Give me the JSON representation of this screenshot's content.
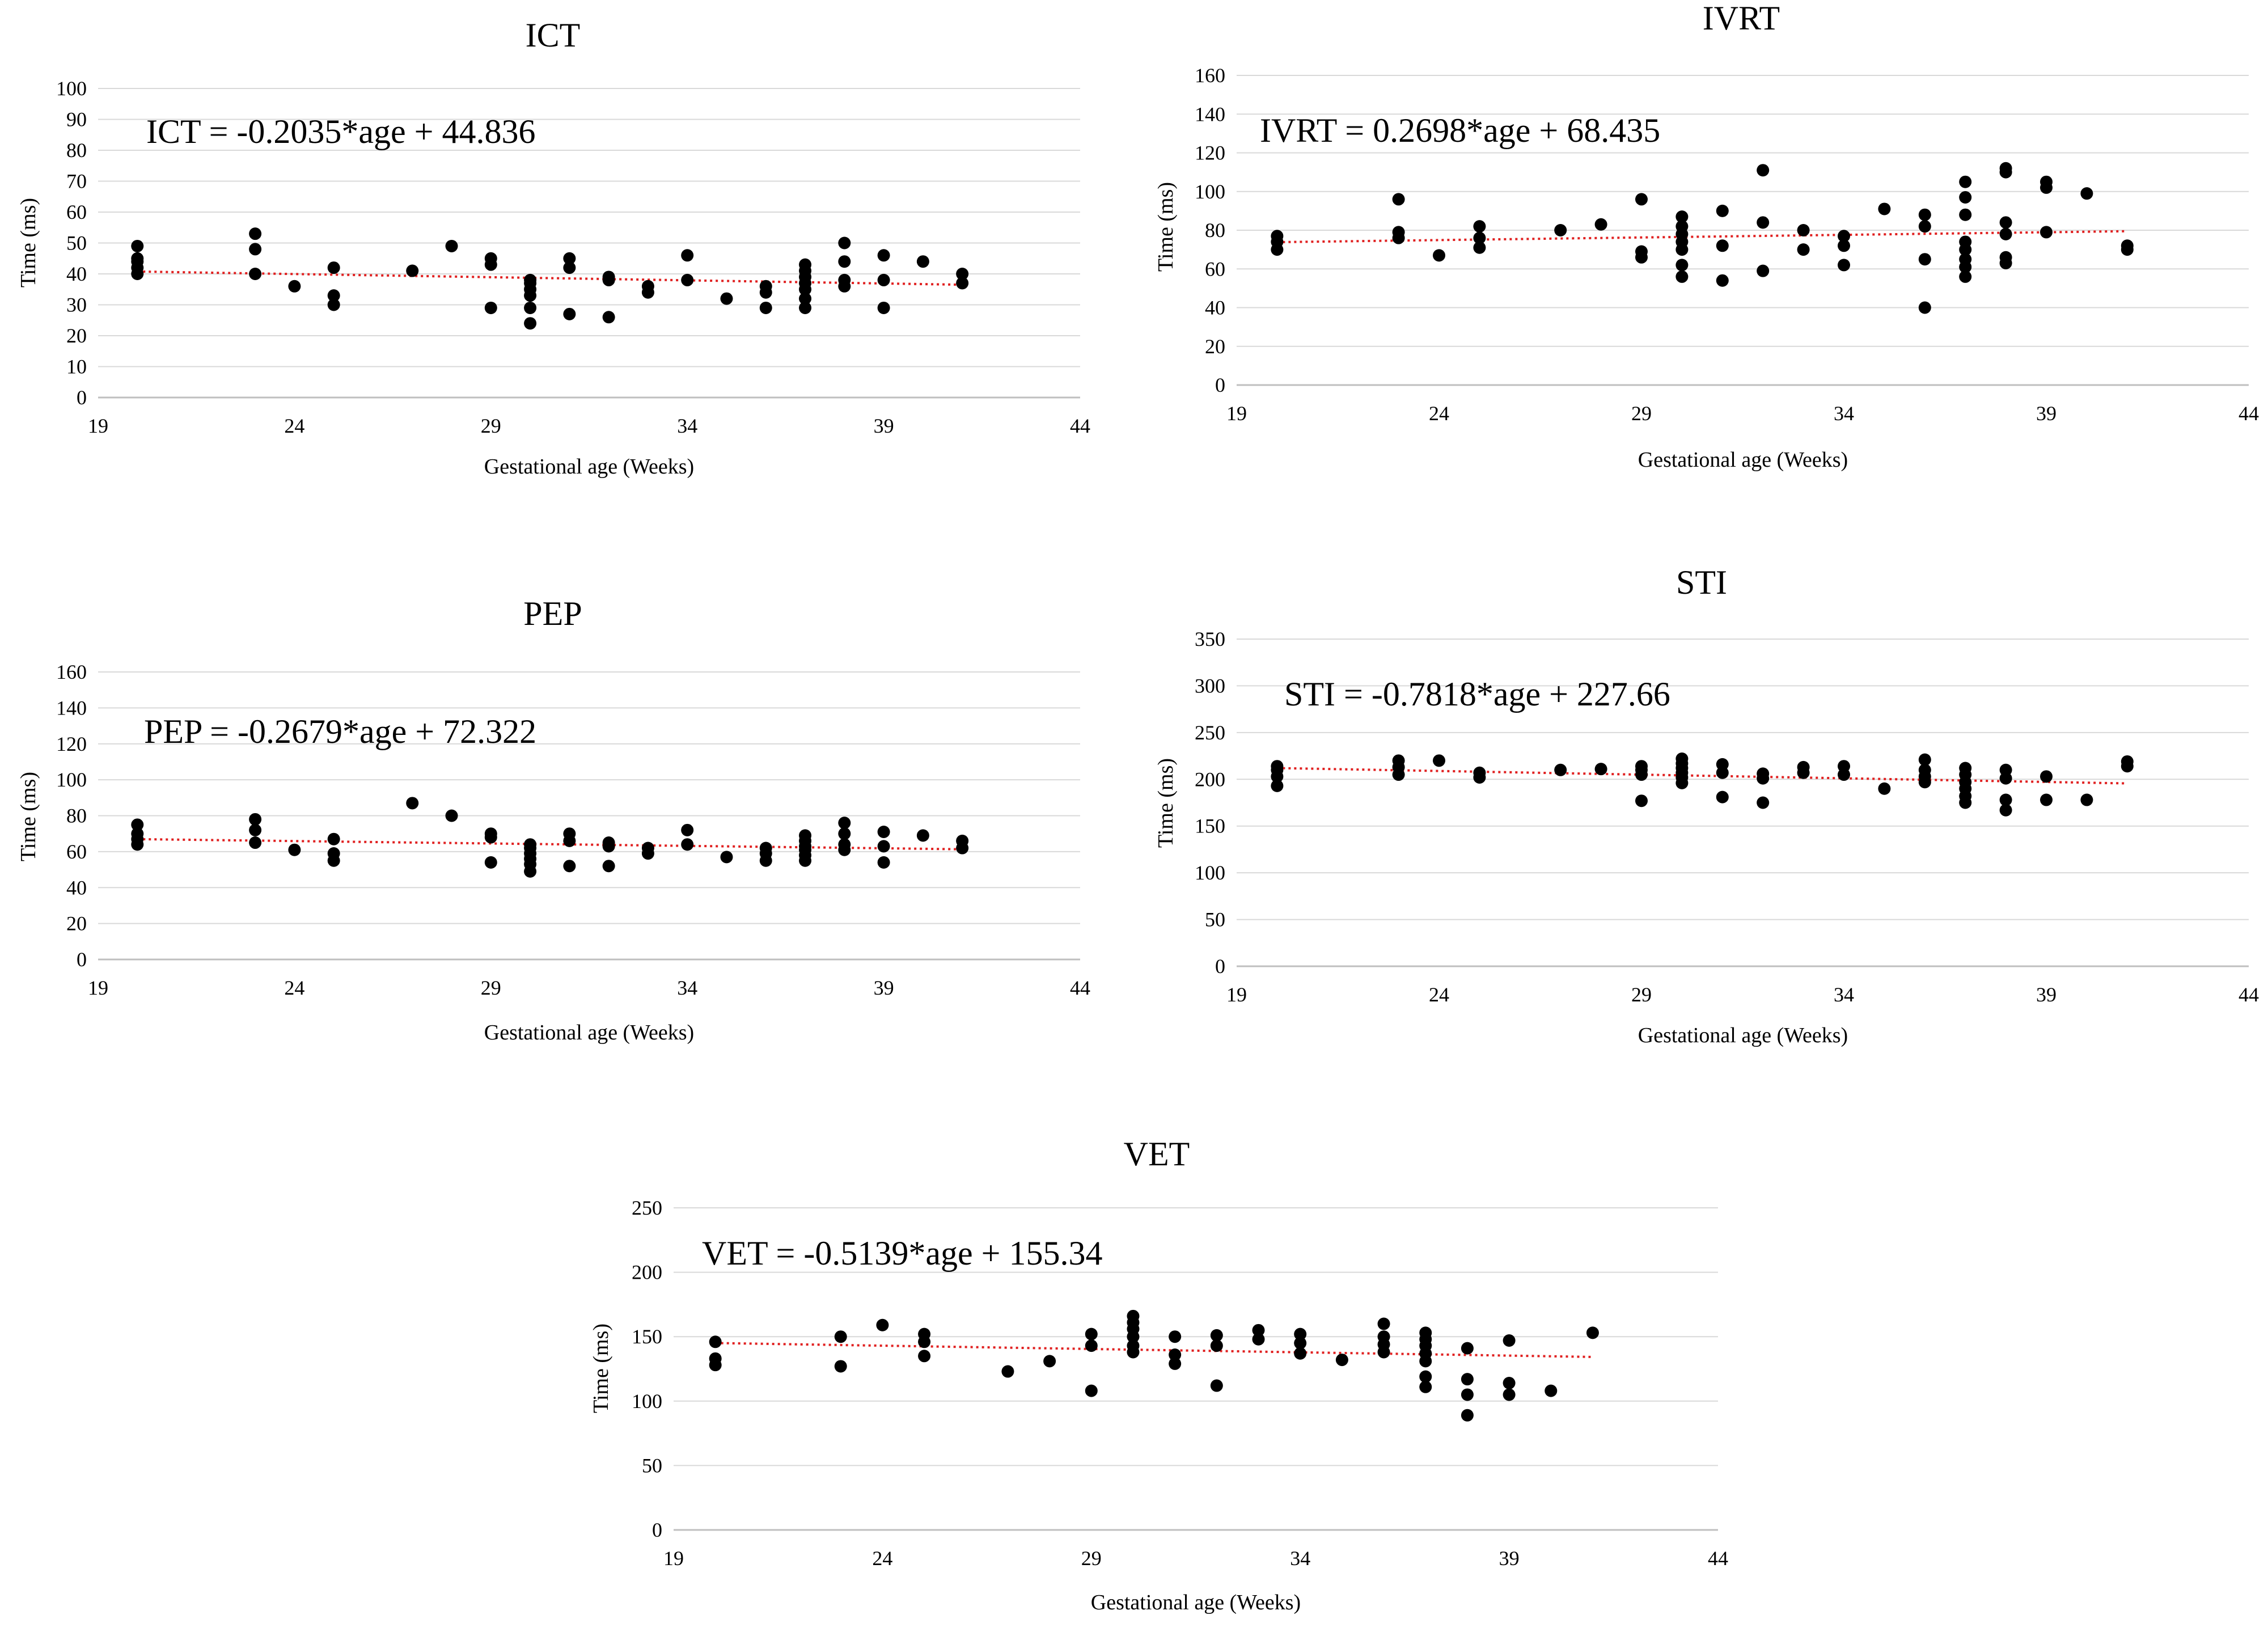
{
  "chart_data": [
    {
      "id": "ict",
      "type": "scatter",
      "title": "ICT",
      "xlabel": "Gestational age (Weeks)",
      "ylabel": "Time (ms)",
      "xlim": [
        19,
        44
      ],
      "ylim": [
        0,
        100
      ],
      "xticks": [
        19,
        24,
        29,
        34,
        39,
        44
      ],
      "yticks": [
        0,
        10,
        20,
        30,
        40,
        50,
        60,
        70,
        80,
        90,
        100
      ],
      "grid": true,
      "equation": "ICT = -0.2035*age + 44.836",
      "trendline": {
        "slope": -0.2035,
        "intercept": 44.836,
        "x": [
          20,
          41
        ],
        "color": "#e02020"
      },
      "marker_color": "#000000",
      "points": [
        [
          20,
          40
        ],
        [
          20,
          42
        ],
        [
          20,
          44
        ],
        [
          20,
          45
        ],
        [
          20,
          49
        ],
        [
          23,
          40
        ],
        [
          23,
          48
        ],
        [
          23,
          53
        ],
        [
          24,
          36
        ],
        [
          25,
          30
        ],
        [
          25,
          33
        ],
        [
          25,
          42
        ],
        [
          27,
          41
        ],
        [
          28,
          49
        ],
        [
          29,
          29
        ],
        [
          29,
          43
        ],
        [
          29,
          45
        ],
        [
          30,
          24
        ],
        [
          30,
          29
        ],
        [
          30,
          33
        ],
        [
          30,
          35
        ],
        [
          30,
          37
        ],
        [
          30,
          38
        ],
        [
          31,
          27
        ],
        [
          31,
          42
        ],
        [
          31,
          45
        ],
        [
          32,
          26
        ],
        [
          32,
          38
        ],
        [
          32,
          39
        ],
        [
          33,
          34
        ],
        [
          33,
          36
        ],
        [
          34,
          38
        ],
        [
          34,
          46
        ],
        [
          35,
          32
        ],
        [
          36,
          29
        ],
        [
          36,
          34
        ],
        [
          36,
          36
        ],
        [
          37,
          29
        ],
        [
          37,
          32
        ],
        [
          37,
          35
        ],
        [
          37,
          37
        ],
        [
          37,
          39
        ],
        [
          37,
          41
        ],
        [
          37,
          43
        ],
        [
          38,
          36
        ],
        [
          38,
          38
        ],
        [
          38,
          44
        ],
        [
          38,
          50
        ],
        [
          39,
          29
        ],
        [
          39,
          38
        ],
        [
          39,
          46
        ],
        [
          40,
          44
        ],
        [
          41,
          37
        ],
        [
          41,
          40
        ]
      ]
    },
    {
      "id": "ivrt",
      "type": "scatter",
      "title": "IVRT",
      "xlabel": "Gestational age (Weeks)",
      "ylabel": "Time (ms)",
      "xlim": [
        19,
        44
      ],
      "ylim": [
        0,
        160
      ],
      "xticks": [
        19,
        24,
        29,
        34,
        39,
        44
      ],
      "yticks": [
        0,
        20,
        40,
        60,
        80,
        100,
        120,
        140,
        160
      ],
      "grid": true,
      "equation": "IVRT = 0.2698*age + 68.435",
      "trendline": {
        "slope": 0.2698,
        "intercept": 68.435,
        "x": [
          20,
          41
        ],
        "color": "#e02020"
      },
      "marker_color": "#000000",
      "points": [
        [
          20,
          70
        ],
        [
          20,
          74
        ],
        [
          20,
          77
        ],
        [
          23,
          76
        ],
        [
          23,
          79
        ],
        [
          23,
          96
        ],
        [
          24,
          67
        ],
        [
          25,
          71
        ],
        [
          25,
          76
        ],
        [
          25,
          82
        ],
        [
          27,
          80
        ],
        [
          28,
          83
        ],
        [
          29,
          66
        ],
        [
          29,
          69
        ],
        [
          29,
          96
        ],
        [
          30,
          56
        ],
        [
          30,
          62
        ],
        [
          30,
          70
        ],
        [
          30,
          74
        ],
        [
          30,
          78
        ],
        [
          30,
          82
        ],
        [
          30,
          87
        ],
        [
          31,
          54
        ],
        [
          31,
          72
        ],
        [
          31,
          90
        ],
        [
          32,
          59
        ],
        [
          32,
          84
        ],
        [
          32,
          111
        ],
        [
          33,
          70
        ],
        [
          33,
          80
        ],
        [
          34,
          62
        ],
        [
          34,
          72
        ],
        [
          34,
          77
        ],
        [
          35,
          91
        ],
        [
          36,
          40
        ],
        [
          36,
          65
        ],
        [
          36,
          82
        ],
        [
          36,
          88
        ],
        [
          37,
          56
        ],
        [
          37,
          61
        ],
        [
          37,
          65
        ],
        [
          37,
          70
        ],
        [
          37,
          74
        ],
        [
          37,
          88
        ],
        [
          37,
          97
        ],
        [
          37,
          105
        ],
        [
          38,
          63
        ],
        [
          38,
          66
        ],
        [
          38,
          78
        ],
        [
          38,
          84
        ],
        [
          38,
          110
        ],
        [
          38,
          112
        ],
        [
          39,
          79
        ],
        [
          39,
          102
        ],
        [
          39,
          105
        ],
        [
          40,
          99
        ],
        [
          41,
          70
        ],
        [
          41,
          72
        ]
      ]
    },
    {
      "id": "pep",
      "type": "scatter",
      "title": "PEP",
      "xlabel": "Gestational age (Weeks)",
      "ylabel": "Time (ms)",
      "xlim": [
        19,
        44
      ],
      "ylim": [
        0,
        160
      ],
      "xticks": [
        19,
        24,
        29,
        34,
        39,
        44
      ],
      "yticks": [
        0,
        20,
        40,
        60,
        80,
        100,
        120,
        140,
        160
      ],
      "grid": true,
      "equation": "PEP = -0.2679*age + 72.322",
      "trendline": {
        "slope": -0.2679,
        "intercept": 72.322,
        "x": [
          20,
          41
        ],
        "color": "#e02020"
      },
      "marker_color": "#000000",
      "points": [
        [
          20,
          64
        ],
        [
          20,
          67
        ],
        [
          20,
          70
        ],
        [
          20,
          75
        ],
        [
          23,
          65
        ],
        [
          23,
          72
        ],
        [
          23,
          78
        ],
        [
          24,
          61
        ],
        [
          25,
          55
        ],
        [
          25,
          59
        ],
        [
          25,
          67
        ],
        [
          27,
          87
        ],
        [
          28,
          80
        ],
        [
          29,
          54
        ],
        [
          29,
          68
        ],
        [
          29,
          70
        ],
        [
          30,
          49
        ],
        [
          30,
          53
        ],
        [
          30,
          56
        ],
        [
          30,
          59
        ],
        [
          30,
          62
        ],
        [
          30,
          64
        ],
        [
          31,
          52
        ],
        [
          31,
          66
        ],
        [
          31,
          70
        ],
        [
          32,
          52
        ],
        [
          32,
          63
        ],
        [
          32,
          65
        ],
        [
          33,
          59
        ],
        [
          33,
          62
        ],
        [
          34,
          64
        ],
        [
          34,
          72
        ],
        [
          35,
          57
        ],
        [
          36,
          55
        ],
        [
          36,
          59
        ],
        [
          36,
          62
        ],
        [
          37,
          55
        ],
        [
          37,
          58
        ],
        [
          37,
          61
        ],
        [
          37,
          63
        ],
        [
          37,
          66
        ],
        [
          37,
          69
        ],
        [
          38,
          61
        ],
        [
          38,
          64
        ],
        [
          38,
          70
        ],
        [
          38,
          76
        ],
        [
          39,
          54
        ],
        [
          39,
          63
        ],
        [
          39,
          71
        ],
        [
          40,
          69
        ],
        [
          41,
          62
        ],
        [
          41,
          66
        ]
      ]
    },
    {
      "id": "sti",
      "type": "scatter",
      "title": "STI",
      "xlabel": "Gestational age (Weeks)",
      "ylabel": "Time (ms)",
      "xlim": [
        19,
        44
      ],
      "ylim": [
        0,
        350
      ],
      "xticks": [
        19,
        24,
        29,
        34,
        39,
        44
      ],
      "yticks": [
        0,
        50,
        100,
        150,
        200,
        250,
        300,
        350
      ],
      "grid": true,
      "equation": "STI = -0.7818*age + 227.66",
      "trendline": {
        "slope": -0.7818,
        "intercept": 227.66,
        "x": [
          20,
          41
        ],
        "color": "#e02020"
      },
      "marker_color": "#000000",
      "points": [
        [
          20,
          193
        ],
        [
          20,
          203
        ],
        [
          20,
          210
        ],
        [
          20,
          214
        ],
        [
          23,
          205
        ],
        [
          23,
          213
        ],
        [
          23,
          220
        ],
        [
          24,
          220
        ],
        [
          25,
          202
        ],
        [
          25,
          207
        ],
        [
          27,
          210
        ],
        [
          28,
          211
        ],
        [
          29,
          177
        ],
        [
          29,
          205
        ],
        [
          29,
          210
        ],
        [
          29,
          214
        ],
        [
          30,
          196
        ],
        [
          30,
          202
        ],
        [
          30,
          207
        ],
        [
          30,
          212
        ],
        [
          30,
          217
        ],
        [
          30,
          222
        ],
        [
          31,
          181
        ],
        [
          31,
          207
        ],
        [
          31,
          216
        ],
        [
          32,
          175
        ],
        [
          32,
          201
        ],
        [
          32,
          206
        ],
        [
          33,
          207
        ],
        [
          33,
          213
        ],
        [
          34,
          205
        ],
        [
          34,
          214
        ],
        [
          35,
          190
        ],
        [
          36,
          197
        ],
        [
          36,
          203
        ],
        [
          36,
          210
        ],
        [
          36,
          221
        ],
        [
          37,
          175
        ],
        [
          37,
          182
        ],
        [
          37,
          190
        ],
        [
          37,
          197
        ],
        [
          37,
          205
        ],
        [
          37,
          212
        ],
        [
          38,
          167
        ],
        [
          38,
          178
        ],
        [
          38,
          201
        ],
        [
          38,
          210
        ],
        [
          39,
          178
        ],
        [
          39,
          203
        ],
        [
          40,
          178
        ],
        [
          41,
          214
        ],
        [
          41,
          219
        ]
      ]
    },
    {
      "id": "vet",
      "type": "scatter",
      "title": "VET",
      "xlabel": "Gestational age (Weeks)",
      "ylabel": "Time (ms)",
      "xlim": [
        19,
        44
      ],
      "ylim": [
        0,
        250
      ],
      "xticks": [
        19,
        24,
        29,
        34,
        39,
        44
      ],
      "yticks": [
        0,
        50,
        100,
        150,
        200,
        250
      ],
      "grid": true,
      "equation": "VET = -0.5139*age + 155.34",
      "trendline": {
        "slope": -0.5139,
        "intercept": 155.34,
        "x": [
          20,
          41
        ],
        "color": "#e02020"
      },
      "marker_color": "#000000",
      "points": [
        [
          20,
          128
        ],
        [
          20,
          133
        ],
        [
          20,
          146
        ],
        [
          23,
          127
        ],
        [
          23,
          150
        ],
        [
          24,
          159
        ],
        [
          25,
          135
        ],
        [
          25,
          146
        ],
        [
          25,
          152
        ],
        [
          27,
          123
        ],
        [
          28,
          131
        ],
        [
          29,
          108
        ],
        [
          29,
          143
        ],
        [
          29,
          152
        ],
        [
          30,
          138
        ],
        [
          30,
          143
        ],
        [
          30,
          150
        ],
        [
          30,
          156
        ],
        [
          30,
          161
        ],
        [
          30,
          166
        ],
        [
          31,
          129
        ],
        [
          31,
          136
        ],
        [
          31,
          150
        ],
        [
          32,
          112
        ],
        [
          32,
          143
        ],
        [
          32,
          151
        ],
        [
          33,
          148
        ],
        [
          33,
          155
        ],
        [
          34,
          137
        ],
        [
          34,
          145
        ],
        [
          34,
          152
        ],
        [
          35,
          132
        ],
        [
          36,
          138
        ],
        [
          36,
          144
        ],
        [
          36,
          150
        ],
        [
          36,
          160
        ],
        [
          37,
          111
        ],
        [
          37,
          119
        ],
        [
          37,
          131
        ],
        [
          37,
          137
        ],
        [
          37,
          143
        ],
        [
          37,
          148
        ],
        [
          37,
          153
        ],
        [
          38,
          89
        ],
        [
          38,
          105
        ],
        [
          38,
          117
        ],
        [
          38,
          141
        ],
        [
          39,
          105
        ],
        [
          39,
          114
        ],
        [
          39,
          147
        ],
        [
          40,
          108
        ],
        [
          41,
          153
        ]
      ]
    }
  ]
}
